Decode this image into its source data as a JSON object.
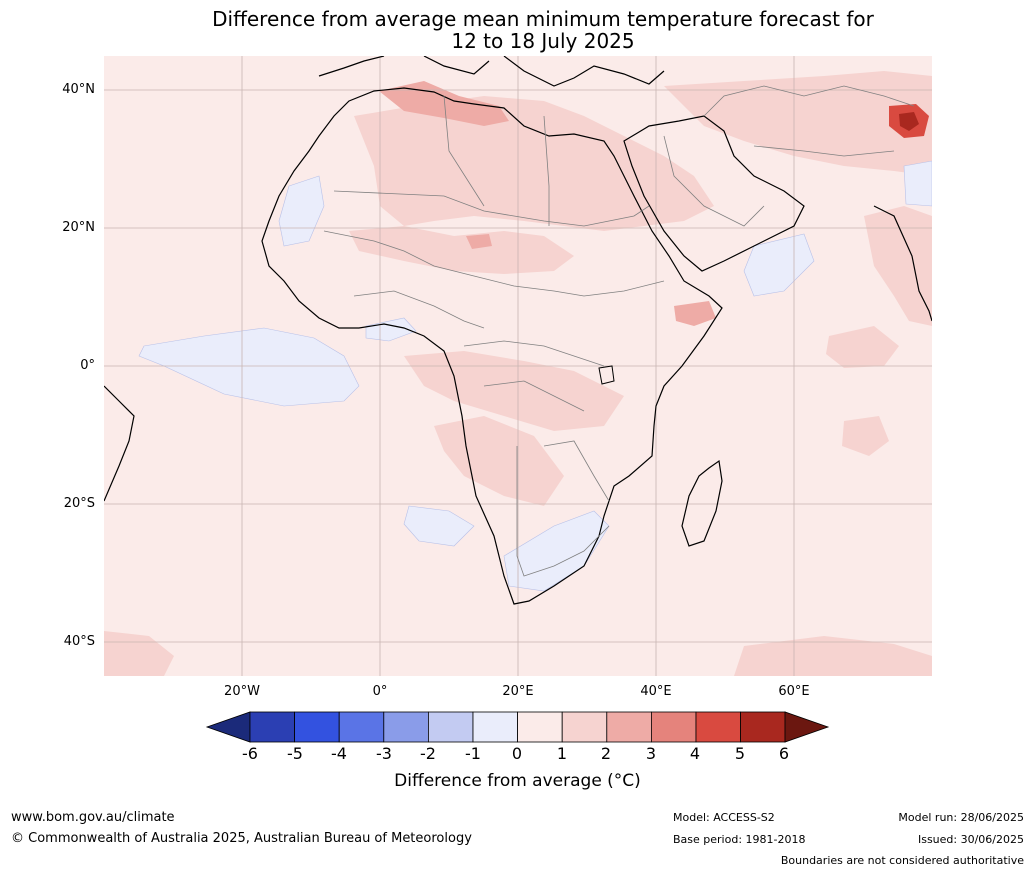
{
  "title_line1": "Difference from average mean minimum temperature forecast for",
  "title_line2": "12 to 18 July 2025",
  "lat_labels": [
    "40°N",
    "20°N",
    "0°",
    "20°S",
    "40°S"
  ],
  "lon_labels": [
    "20°W",
    "0°",
    "20°E",
    "40°E",
    "60°E"
  ],
  "colorbar": {
    "ticks": [
      "-6",
      "-5",
      "-4",
      "-3",
      "-2",
      "-1",
      "0",
      "1",
      "2",
      "3",
      "4",
      "5",
      "6"
    ],
    "colors": [
      "#1b2a7a",
      "#2b3fb3",
      "#3352e0",
      "#5a74e6",
      "#8a9ce9",
      "#c3cbf2",
      "#eaedfb",
      "#fbebe9",
      "#f6d3d0",
      "#eeaba6",
      "#e5837c",
      "#d94a40",
      "#a9281f",
      "#6b1710"
    ],
    "label": "Difference from average (°C)"
  },
  "map_colors": {
    "background": "#fbebe9",
    "land_pink": "#f6d3d0",
    "warm": "#eeaba6",
    "hot": "#d94a40",
    "very_hot": "#a9281f",
    "cool": "#eaedfb",
    "coast": "#000000",
    "border": "#808080",
    "grid": "#c8b4b2"
  },
  "footer": {
    "url": "www.bom.gov.au/climate",
    "copyright": "© Commonwealth of Australia 2025, Australian Bureau of Meteorology",
    "model": "Model: ACCESS-S2",
    "base_period": "Base period: 1981-2018",
    "model_run": "Model run: 28/06/2025",
    "issued": "Issued: 30/06/2025",
    "disclaimer": "Boundaries are not considered authoritative"
  }
}
